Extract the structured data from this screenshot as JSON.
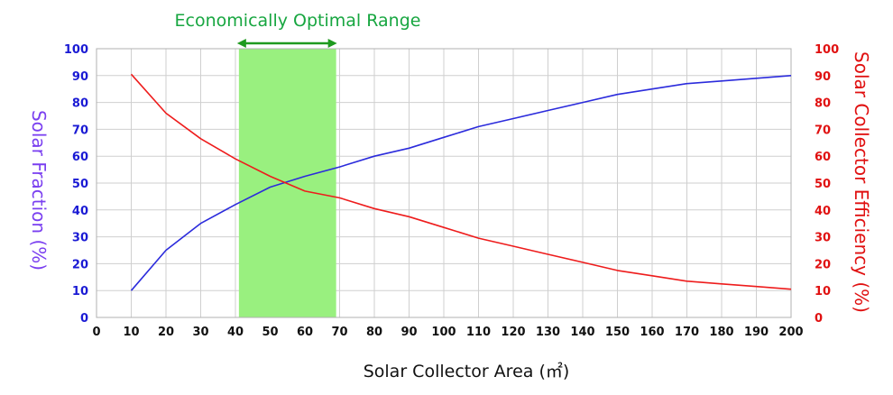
{
  "chart_data": {
    "type": "line",
    "xlabel": "Solar Collector Area (㎡)",
    "ylabel_left": "Solar Fraction (%)",
    "ylabel_right": "Solar Collector Efficiency (%)",
    "xlim": [
      0,
      200
    ],
    "ylim_left": [
      0,
      100
    ],
    "ylim_right": [
      0,
      100
    ],
    "x_ticks": [
      0,
      10,
      20,
      30,
      40,
      50,
      60,
      70,
      80,
      90,
      100,
      110,
      120,
      130,
      140,
      150,
      160,
      170,
      180,
      190,
      200
    ],
    "y_ticks_left": [
      0,
      10,
      20,
      30,
      40,
      50,
      60,
      70,
      80,
      90,
      100
    ],
    "y_ticks_right": [
      0,
      10,
      20,
      30,
      40,
      50,
      60,
      70,
      80,
      90,
      100
    ],
    "grid": true,
    "highlight": {
      "label": "Economically Optimal Range",
      "x_start": 41,
      "x_end": 69,
      "color": "#99f07f",
      "arrow_color": "#1e9a1e",
      "label_color": "#17a640"
    },
    "series": [
      {
        "axis": "left",
        "color": "#2b2bdc",
        "x": [
          10,
          20,
          30,
          40,
          50,
          60,
          70,
          80,
          90,
          100,
          110,
          120,
          130,
          140,
          150,
          160,
          170,
          180,
          190,
          200
        ],
        "values": [
          10,
          25,
          35,
          42,
          48.5,
          52.5,
          56,
          60,
          63,
          67,
          71,
          74,
          77,
          80,
          83,
          85,
          87,
          88,
          89,
          90
        ]
      },
      {
        "axis": "right",
        "color": "#ee1c1c",
        "x": [
          10,
          20,
          30,
          40,
          50,
          60,
          70,
          80,
          90,
          100,
          110,
          120,
          130,
          140,
          150,
          160,
          170,
          180,
          190,
          200
        ],
        "values": [
          90.5,
          76,
          66.5,
          59,
          52.5,
          47,
          44.5,
          40.5,
          37.5,
          33.5,
          29.5,
          26.5,
          23.5,
          20.5,
          17.5,
          15.5,
          13.5,
          12.5,
          11.5,
          10.5
        ]
      }
    ]
  }
}
